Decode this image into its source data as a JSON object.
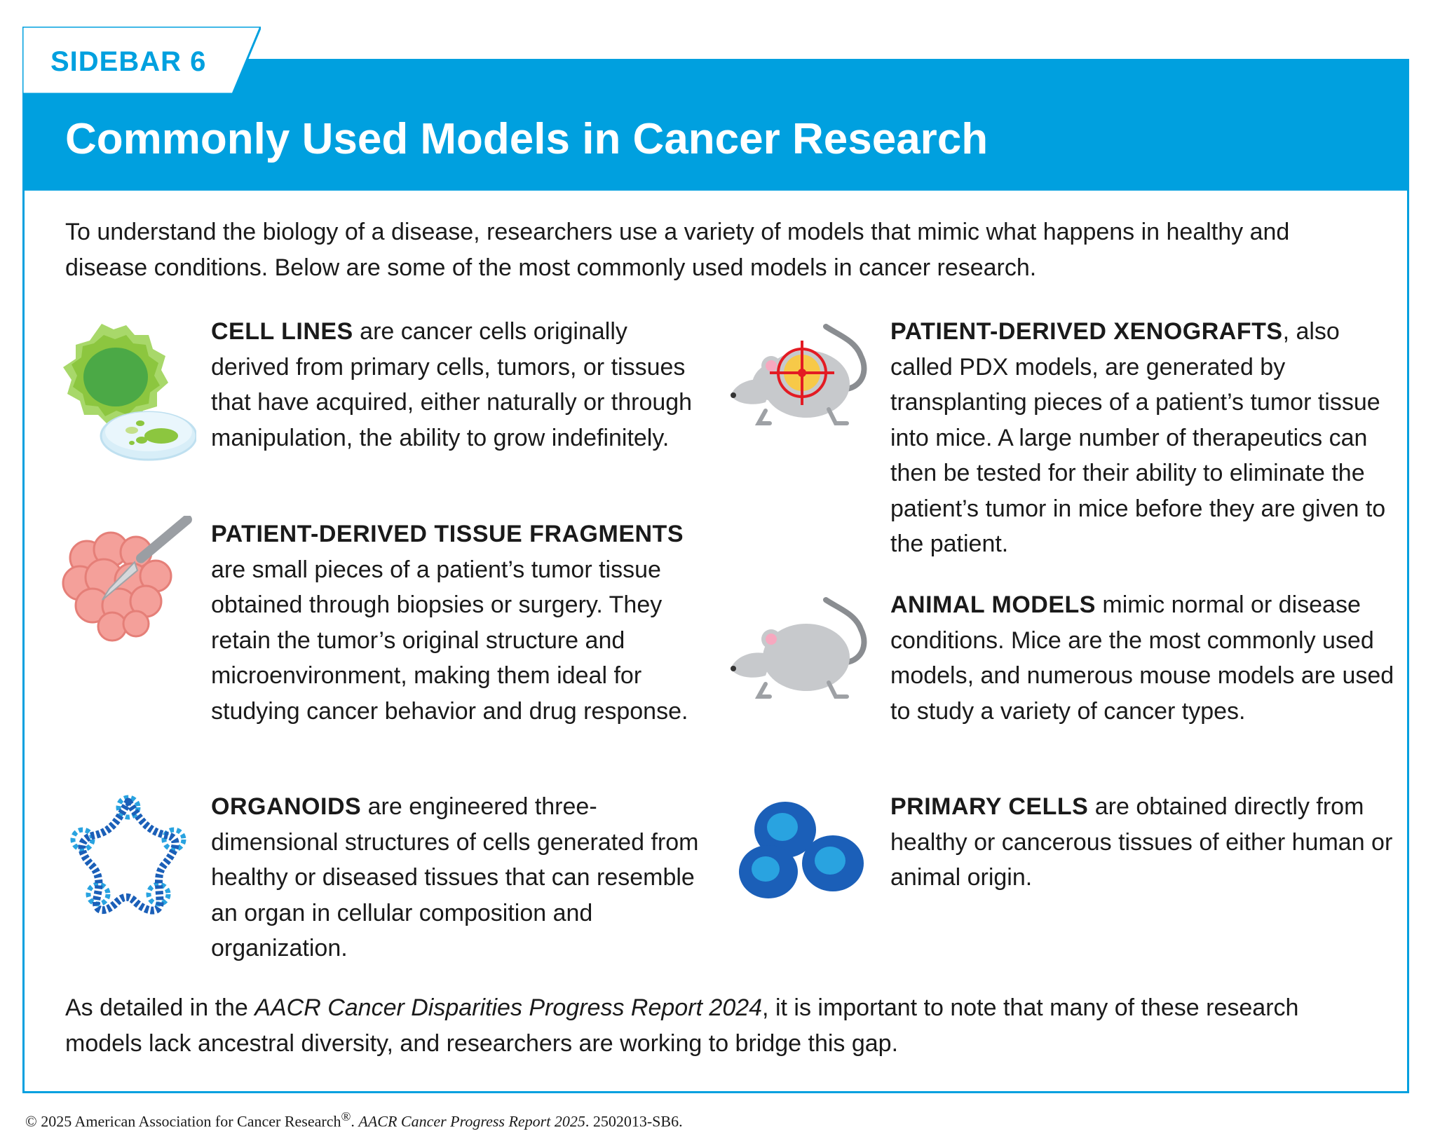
{
  "sidebar_label": "SIDEBAR 6",
  "title": "Commonly Used Models in Cancer Research",
  "intro": "To understand the biology of a disease, researchers use a variety of models that mimic what happens in healthy and disease conditions. Below are some of the most commonly used models in cancer research.",
  "models": {
    "cell_lines": {
      "term": "CELL LINES",
      "text": " are cancer cells originally derived from primary cells, tumors, or tissues that have acquired, either naturally or through manipulation, the ability to grow indefinitely.",
      "icon": "cell-culture-dish-icon"
    },
    "tissue_fragments": {
      "term": "PATIENT-DERIVED TISSUE FRAGMENTS",
      "text": " are small pieces of a patient’s tumor tissue obtained through biopsies or surgery. They retain the tumor’s original structure and microenvironment, making them ideal for studying cancer behavior and drug response.",
      "icon": "tissue-scalpel-icon"
    },
    "organoids": {
      "term": "ORGANOIDS",
      "text": " are engineered three-dimensional structures of cells generated from healthy or diseased tissues that can resemble an organ in cellular composition and organization.",
      "icon": "organoid-ring-icon"
    },
    "xenografts": {
      "term": "PATIENT-DERIVED XENOGRAFTS",
      "text": ", also called PDX models, are generated by transplanting pieces of a patient’s tumor tissue into mice. A large number of therapeutics can then be tested for their ability to eliminate the patient’s tumor in mice before they are given to the patient.",
      "icon": "mouse-target-icon"
    },
    "animal_models": {
      "term": "ANIMAL MODELS",
      "text": " mimic normal or disease conditions. Mice are the most commonly used models, and numerous mouse models are used to study a variety of cancer types.",
      "icon": "mouse-icon"
    },
    "primary_cells": {
      "term": "PRIMARY CELLS",
      "text": " are obtained directly from healthy or cancerous tissues of either human or animal origin.",
      "icon": "blue-cells-icon"
    }
  },
  "closing": {
    "before": "As detailed in the ",
    "italic": "AACR Cancer Disparities Progress Report 2024",
    "after": ", it is important to note that many of these research models lack ancestral diversity, and researchers are working to bridge this gap."
  },
  "copyright": {
    "before": "© 2025 American Association for Cancer Research",
    "reg": "®",
    "after": ". ",
    "italic": "AACR Cancer Progress Report 2025",
    "code": ". 2502013-SB6."
  },
  "colors": {
    "accent": "#00a0df",
    "cell_green": "#8cc63f",
    "tissue_pink": "#f4a09a",
    "organoid_blue": "#1b5fb8",
    "mouse_gray": "#c7c9cc",
    "target_red": "#e31b23"
  }
}
